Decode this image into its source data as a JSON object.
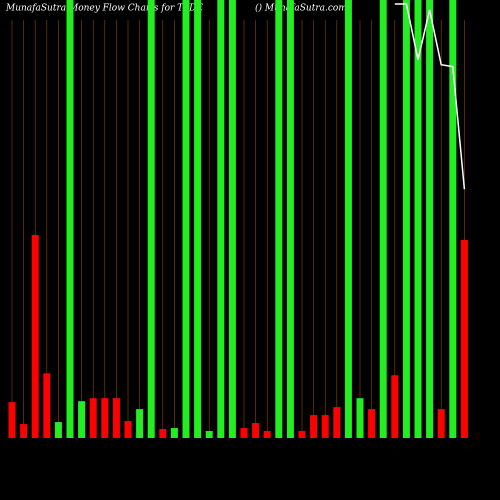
{
  "chart_data": {
    "type": "bar",
    "title": "MunafaSutra  Money Flow  Charts for TYDE",
    "subtitle": "() MunafaSutra.com",
    "categories": [
      null,
      null,
      null,
      null,
      null,
      null,
      null,
      null,
      null,
      null,
      null,
      null,
      null,
      null,
      null,
      null,
      null,
      null,
      null,
      null,
      null,
      null,
      null,
      null,
      null,
      null,
      null,
      null,
      null,
      null,
      null,
      null,
      null,
      null,
      null,
      null,
      null,
      null,
      null,
      null
    ],
    "series": [
      {
        "colors": [
          "#ff0000",
          "#ff0000",
          "#ff0000",
          "#ff0000",
          "#22ee22",
          "#22ee22",
          "#22ee22",
          "#ff0000",
          "#ff0000",
          "#ff0000",
          "#ff0000",
          "#22ee22",
          "#22ee22",
          "#ff0000",
          "#22ee22",
          "#22ee22",
          "#22ee22",
          "#22ee22",
          "#22ee22",
          "#22ee22",
          "#ff0000",
          "#ff0000",
          "#ff0000",
          "#22ee22",
          "#22ee22",
          "#ff0000",
          "#ff0000",
          "#ff0000",
          "#ff0000",
          "#22ee22",
          "#22ee22",
          "#ff0000",
          "#22ee22",
          "#ff0000",
          "#22ee22",
          "#22ee22",
          "#22ee22",
          "#ff0000",
          "#22ee22",
          "#ff0000"
        ],
        "values": [
          36,
          14,
          204,
          65,
          16,
          440,
          37,
          40,
          40,
          40,
          17,
          29,
          440,
          9,
          10,
          440,
          440,
          7,
          440,
          440,
          10,
          15,
          7,
          440,
          440,
          7,
          23,
          23,
          31,
          440,
          40,
          29,
          440,
          63,
          440,
          440,
          440,
          29,
          440,
          199
        ]
      },
      {
        "type": "line",
        "color": "#ffffff",
        "values": [
          null,
          null,
          null,
          null,
          null,
          null,
          null,
          null,
          null,
          null,
          null,
          null,
          null,
          null,
          null,
          null,
          null,
          null,
          null,
          null,
          null,
          null,
          null,
          null,
          null,
          null,
          null,
          null,
          null,
          null,
          null,
          null,
          null,
          436,
          436,
          380,
          430,
          375,
          373,
          250
        ]
      }
    ],
    "ylim": [
      0,
      440
    ]
  }
}
